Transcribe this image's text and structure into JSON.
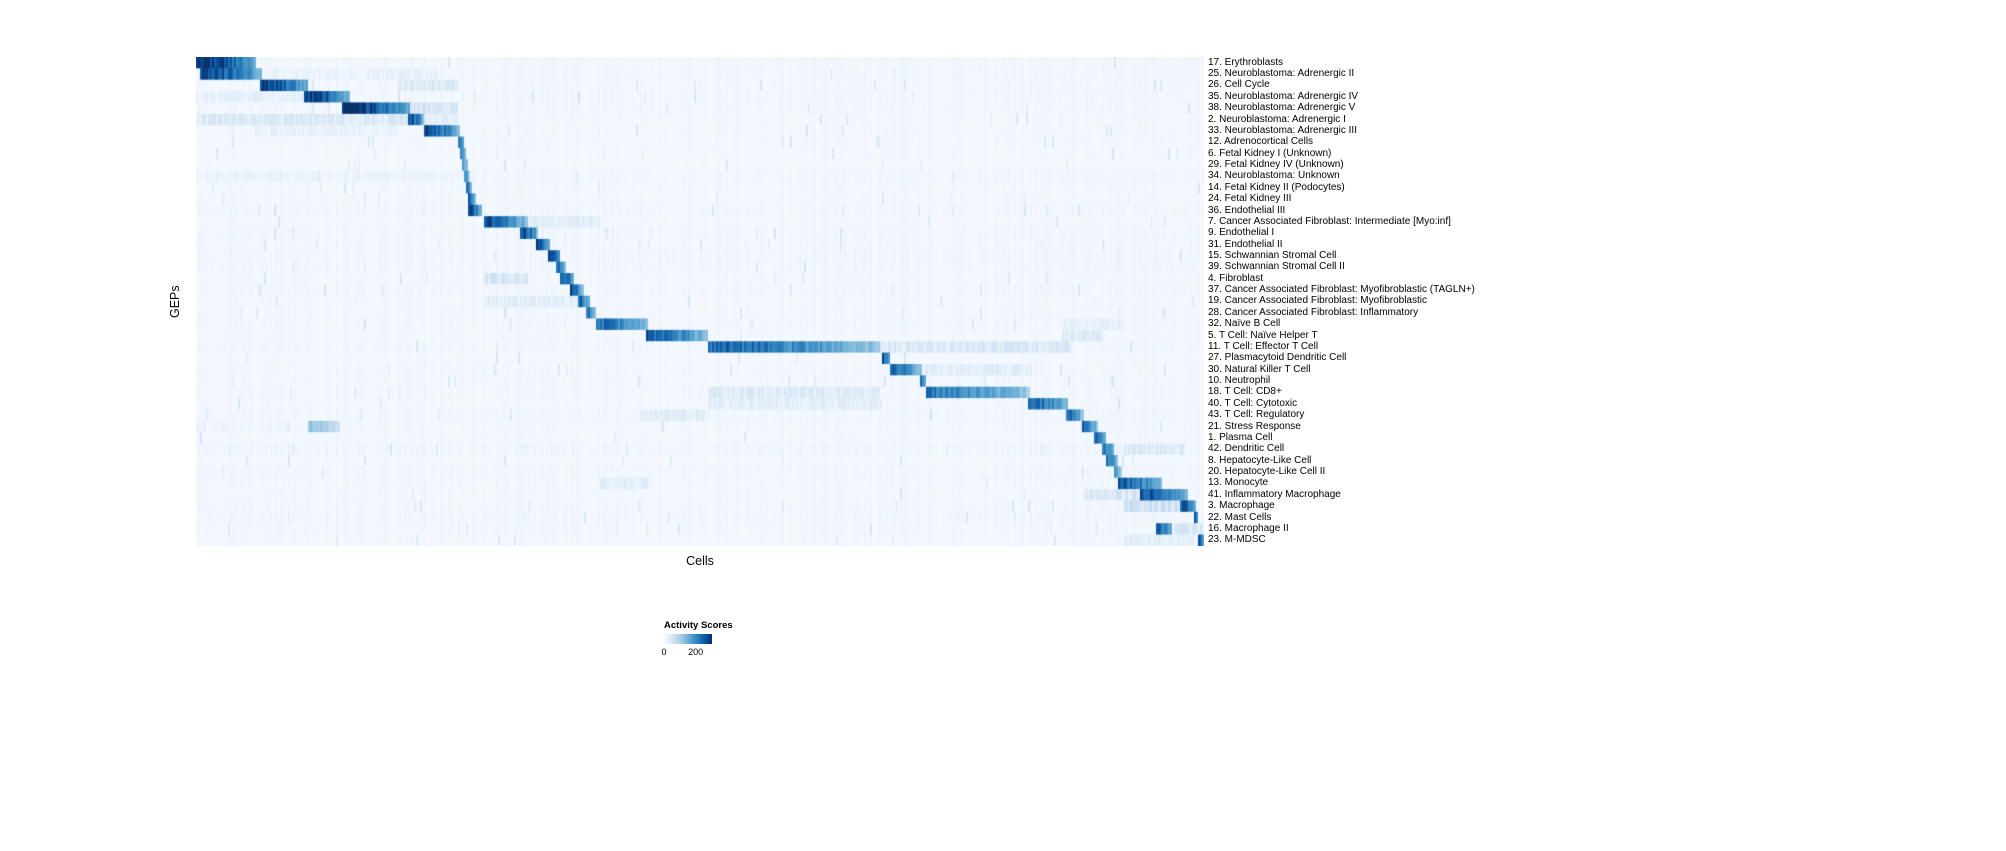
{
  "chart_data": {
    "type": "heatmap",
    "title": "",
    "xlabel": "Cells",
    "ylabel": "GEPs",
    "colormap": "Blues",
    "value_range": [
      0,
      200
    ],
    "colormap_stops": [
      "#f7fbff",
      "#deebf7",
      "#c6dbef",
      "#9ecae1",
      "#6baed6",
      "#4292c6",
      "#2171b5",
      "#08519c",
      "#08306b"
    ],
    "legend": {
      "title": "Activity Scores",
      "tick_min": "0",
      "tick_max": "200",
      "tick_max_frac": 0.66
    },
    "n_rows": 43,
    "rows_note": "Each row is a GEP; blocks are [start_fraction, end_fraction, relative_intensity] of active cell ranges along the x axis (cells ordered to form a diagonal).",
    "rows": [
      {
        "label": "17. Erythroblasts",
        "blocks": [
          [
            0.0,
            0.06,
            1.0
          ]
        ]
      },
      {
        "label": "25. Neuroblastoma: Adrenergic II",
        "blocks": [
          [
            0.004,
            0.065,
            0.92
          ],
          [
            0.065,
            0.24,
            0.07
          ]
        ]
      },
      {
        "label": "26. Cell Cycle",
        "blocks": [
          [
            0.063,
            0.112,
            0.95
          ],
          [
            0.2,
            0.26,
            0.12
          ]
        ]
      },
      {
        "label": "35. Neuroblastoma: Adrenergic IV",
        "blocks": [
          [
            0.108,
            0.152,
            0.95
          ],
          [
            0.0,
            0.108,
            0.08
          ]
        ]
      },
      {
        "label": "38. Neuroblastoma: Adrenergic V",
        "blocks": [
          [
            0.145,
            0.212,
            1.0
          ],
          [
            0.212,
            0.26,
            0.15
          ]
        ]
      },
      {
        "label": "2. Neuroblastoma: Adrenergic I",
        "blocks": [
          [
            0.21,
            0.226,
            0.9
          ],
          [
            0.0,
            0.21,
            0.13
          ],
          [
            0.226,
            0.26,
            0.12
          ]
        ]
      },
      {
        "label": "33. Neuroblastoma: Adrenergic III",
        "blocks": [
          [
            0.227,
            0.261,
            0.92
          ],
          [
            0.06,
            0.2,
            0.07
          ]
        ]
      },
      {
        "label": "12. Adrenocortical Cells",
        "blocks": [
          [
            0.259,
            0.2665,
            0.85
          ]
        ]
      },
      {
        "label": "6. Fetal Kidney I (Unknown)",
        "blocks": [
          [
            0.261,
            0.268,
            0.75
          ]
        ]
      },
      {
        "label": "29. Fetal Kidney IV (Unknown)",
        "blocks": [
          [
            0.263,
            0.2695,
            0.7
          ]
        ]
      },
      {
        "label": "34. Neuroblastoma: Unknown",
        "blocks": [
          [
            0.265,
            0.2715,
            0.7
          ],
          [
            0.0,
            0.26,
            0.06
          ]
        ]
      },
      {
        "label": "14. Fetal Kidney II (Podocytes)",
        "blocks": [
          [
            0.267,
            0.2735,
            0.75
          ]
        ]
      },
      {
        "label": "24. Fetal Kidney III",
        "blocks": [
          [
            0.269,
            0.277,
            0.8
          ]
        ]
      },
      {
        "label": "36. Endothelial III",
        "blocks": [
          [
            0.27,
            0.284,
            0.92
          ]
        ]
      },
      {
        "label": "7. Cancer Associated Fibroblast: Intermediate [Myo:inf]",
        "blocks": [
          [
            0.285,
            0.33,
            0.85
          ],
          [
            0.33,
            0.4,
            0.1
          ]
        ]
      },
      {
        "label": "9. Endothelial I",
        "blocks": [
          [
            0.321,
            0.339,
            0.92
          ]
        ]
      },
      {
        "label": "31. Endothelial II",
        "blocks": [
          [
            0.338,
            0.351,
            0.88
          ]
        ]
      },
      {
        "label": "15. Schwannian Stromal Cell",
        "blocks": [
          [
            0.35,
            0.362,
            0.9
          ]
        ]
      },
      {
        "label": "39. Schwannian Stromal Cell II",
        "blocks": [
          [
            0.357,
            0.367,
            0.8
          ]
        ]
      },
      {
        "label": "4. Fibroblast",
        "blocks": [
          [
            0.362,
            0.375,
            0.9
          ],
          [
            0.285,
            0.33,
            0.15
          ]
        ]
      },
      {
        "label": "37. Cancer Associated Fibroblast: Myofibroblastic (TAGLN+)",
        "blocks": [
          [
            0.371,
            0.384,
            0.88
          ]
        ]
      },
      {
        "label": "19. Cancer Associated Fibroblast: Myofibroblastic",
        "blocks": [
          [
            0.379,
            0.391,
            0.82
          ],
          [
            0.285,
            0.38,
            0.1
          ]
        ]
      },
      {
        "label": "28. Cancer Associated Fibroblast: Inflammatory",
        "blocks": [
          [
            0.386,
            0.397,
            0.75
          ]
        ]
      },
      {
        "label": "32. Naïve B Cell",
        "blocks": [
          [
            0.397,
            0.449,
            0.78
          ],
          [
            0.86,
            0.92,
            0.08
          ]
        ]
      },
      {
        "label": "5. T Cell: Naïve Helper T",
        "blocks": [
          [
            0.446,
            0.508,
            0.82
          ],
          [
            0.86,
            0.9,
            0.12
          ]
        ]
      },
      {
        "label": "11. T Cell: Effector T Cell",
        "blocks": [
          [
            0.508,
            0.679,
            0.78
          ],
          [
            0.679,
            0.87,
            0.14
          ]
        ]
      },
      {
        "label": "27. Plasmacytoid Dendritic Cell",
        "blocks": [
          [
            0.68,
            0.689,
            0.9
          ]
        ]
      },
      {
        "label": "30. Natural Killer T Cell",
        "blocks": [
          [
            0.689,
            0.721,
            0.78
          ],
          [
            0.72,
            0.83,
            0.1
          ]
        ]
      },
      {
        "label": "10. Neutrophil",
        "blocks": [
          [
            0.719,
            0.725,
            0.8
          ]
        ]
      },
      {
        "label": "18. T Cell: CD8+",
        "blocks": [
          [
            0.724,
            0.828,
            0.72
          ],
          [
            0.508,
            0.679,
            0.12
          ]
        ]
      },
      {
        "label": "40. T Cell: Cytotoxic",
        "blocks": [
          [
            0.826,
            0.866,
            0.8
          ],
          [
            0.508,
            0.68,
            0.1
          ]
        ]
      },
      {
        "label": "43. T Cell: Regulatory",
        "blocks": [
          [
            0.863,
            0.88,
            0.8
          ],
          [
            0.44,
            0.51,
            0.1
          ]
        ]
      },
      {
        "label": "21. Stress Response",
        "blocks": [
          [
            0.878,
            0.894,
            0.82
          ],
          [
            0.111,
            0.143,
            0.4
          ],
          [
            0.0,
            0.1,
            0.05
          ]
        ]
      },
      {
        "label": "1. Plasma Cell",
        "blocks": [
          [
            0.891,
            0.902,
            0.85
          ]
        ]
      },
      {
        "label": "42. Dendritic Cell",
        "blocks": [
          [
            0.898,
            0.911,
            0.8
          ],
          [
            0.92,
            0.98,
            0.12
          ]
        ]
      },
      {
        "label": "8. Hepatocyte-Like Cell",
        "blocks": [
          [
            0.903,
            0.915,
            0.75
          ]
        ]
      },
      {
        "label": "20. Hepatocyte-Like Cell II",
        "blocks": [
          [
            0.91,
            0.918,
            0.7
          ]
        ]
      },
      {
        "label": "13. Monocyte",
        "blocks": [
          [
            0.915,
            0.958,
            0.85
          ],
          [
            0.4,
            0.45,
            0.1
          ]
        ]
      },
      {
        "label": "41. Inflammatory Macrophage",
        "blocks": [
          [
            0.937,
            0.985,
            0.85
          ],
          [
            0.88,
            0.937,
            0.15
          ]
        ]
      },
      {
        "label": "3. Macrophage",
        "blocks": [
          [
            0.977,
            0.993,
            0.85
          ],
          [
            0.92,
            0.977,
            0.2
          ]
        ]
      },
      {
        "label": "22. Mast Cells",
        "blocks": [
          [
            0.99,
            0.9945,
            0.9
          ]
        ]
      },
      {
        "label": "16. Macrophage II",
        "blocks": [
          [
            0.953,
            0.969,
            0.82
          ],
          [
            0.97,
            1.0,
            0.15
          ]
        ]
      },
      {
        "label": "23. M-MDSC",
        "blocks": [
          [
            0.995,
            1.0,
            0.95
          ],
          [
            0.92,
            0.99,
            0.1
          ]
        ]
      }
    ]
  }
}
